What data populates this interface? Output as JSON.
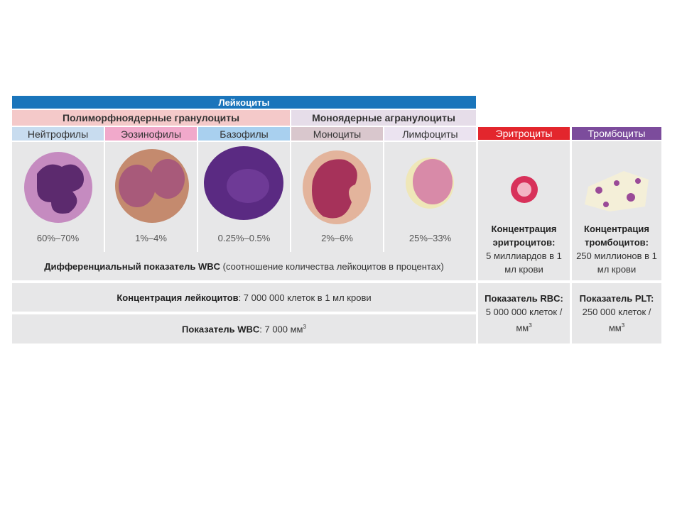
{
  "header": {
    "title": "Лейкоциты"
  },
  "groups": [
    {
      "title": "Полиморфноядерные гранулоциты"
    },
    {
      "title": "Моноядерные агранулоциты"
    }
  ],
  "leukocytes": [
    {
      "name": "Нейтрофилы",
      "share": "60%–70%"
    },
    {
      "name": "Эозинофилы",
      "share": "1%–4%"
    },
    {
      "name": "Базофилы",
      "share": "0.25%–0.5%"
    },
    {
      "name": "Моноциты",
      "share": "2%–6%"
    },
    {
      "name": "Лимфоциты",
      "share": "25%–33%"
    }
  ],
  "differential": {
    "label": "Дифференциальный показатель WBC",
    "note": " (соотношение количества лейкоцитов в процентах)"
  },
  "concentration": {
    "label": "Концентрация лейкоцитов",
    "text": ": 7 000 000 клеток в 1 мл крови"
  },
  "wbc": {
    "label": "Показатель WBC",
    "text": ": 7 000 мм",
    "sup": "3"
  },
  "erythrocytes": {
    "name": "Эритроциты",
    "concentration_label": "Концентрация эритроцитов:",
    "concentration_text": "5 миллиардов в 1 мл крови",
    "index_label": "Показатель RBC:",
    "index_text": "5 000 000 клеток / мм",
    "sup": "3"
  },
  "platelets": {
    "name": "Тромбоциты",
    "concentration_label": "Концентрация тромбоцитов:",
    "concentration_text": "250 миллионов в 1 мл крови",
    "index_label": "Показатель PLT:",
    "index_text": "250 000 клеток / мм",
    "sup": "3"
  }
}
